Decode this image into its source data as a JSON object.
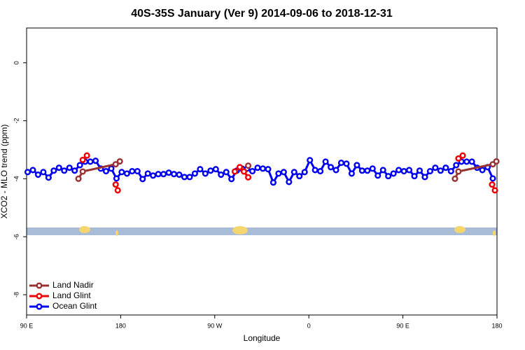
{
  "chart_data": {
    "type": "line",
    "title": "40S-35S January (Ver 9)   2014-09-06 to 2018-12-31",
    "x_label": "Longitude",
    "y_label": "XCO2 - MLO trend (ppm)",
    "xlim": [
      90,
      540
    ],
    "xticks": [
      {
        "value": 90,
        "label": "90 E"
      },
      {
        "value": 180,
        "label": "180"
      },
      {
        "value": 270,
        "label": "90 W"
      },
      {
        "value": 360,
        "label": "0"
      },
      {
        "value": 450,
        "label": "90 E"
      },
      {
        "value": 540,
        "label": "180"
      }
    ],
    "ylim": [
      -8.7,
      1.2
    ],
    "yticks": [
      0,
      -2,
      -4,
      -6,
      -8
    ],
    "legend": "bottom-left",
    "series": [
      {
        "name": "Ocean Glint",
        "color": "#0000ee",
        "x": [
          91,
          96,
          101,
          106,
          111,
          116,
          121,
          126,
          131,
          136,
          141,
          146,
          151,
          156,
          161,
          166,
          171,
          176,
          181,
          186,
          191,
          196,
          201,
          206,
          211,
          216,
          221,
          226,
          231,
          236,
          241,
          246,
          251,
          256,
          261,
          266,
          271,
          276,
          281,
          286,
          291,
          296,
          301,
          306,
          311,
          316,
          321,
          326,
          331,
          336,
          341,
          346,
          351,
          356,
          361,
          366,
          371,
          376,
          381,
          386,
          391,
          396,
          401,
          406,
          411,
          416,
          421,
          426,
          431,
          436,
          441,
          446,
          451,
          456,
          461,
          466,
          471,
          476,
          481,
          486,
          491,
          496,
          501,
          506,
          511,
          516,
          521,
          526,
          531,
          536
        ],
        "values": [
          -3.77,
          -3.7,
          -3.86,
          -3.77,
          -3.96,
          -3.72,
          -3.62,
          -3.72,
          -3.62,
          -3.72,
          -3.53,
          -3.41,
          -3.41,
          -3.38,
          -3.65,
          -3.74,
          -3.65,
          -3.99,
          -3.77,
          -3.82,
          -3.74,
          -3.74,
          -4.01,
          -3.82,
          -3.89,
          -3.84,
          -3.84,
          -3.79,
          -3.84,
          -3.86,
          -3.94,
          -3.94,
          -3.82,
          -3.67,
          -3.82,
          -3.72,
          -3.67,
          -3.86,
          -3.77,
          -4.01,
          -3.72,
          -3.65,
          -3.65,
          -3.74,
          -3.62,
          -3.65,
          -3.67,
          -4.13,
          -3.82,
          -3.77,
          -4.11,
          -3.77,
          -3.91,
          -3.77,
          -3.36,
          -3.7,
          -3.74,
          -3.41,
          -3.6,
          -3.7,
          -3.45,
          -3.48,
          -3.82,
          -3.53,
          -3.72,
          -3.72,
          -3.65,
          -3.89,
          -3.7,
          -3.91,
          -3.82,
          -3.7,
          -3.74,
          -3.7,
          -3.91,
          -3.72,
          -3.94,
          -3.74,
          -3.62,
          -3.72,
          -3.62,
          -3.74,
          -3.53,
          -3.41,
          -3.41,
          -3.41,
          -3.62,
          -3.7,
          -3.6,
          -3.99
        ]
      },
      {
        "name": "Land Nadir",
        "color": "#993333",
        "x": [
          139.6,
          143.7,
          175.2,
          179.2,
          null,
          302,
          null,
          499.8,
          503.1,
          536,
          539.4
        ],
        "values": [
          -4.0,
          -3.75,
          -3.5,
          -3.4,
          null,
          -3.55,
          null,
          -4.0,
          -3.75,
          -3.5,
          -3.4
        ]
      },
      {
        "name": "Land Glint",
        "color": "#ee0000",
        "x": [
          143.7,
          147.7,
          null,
          175.2,
          177.2,
          null,
          289.2,
          293.9,
          297.9,
          302,
          null,
          503.1,
          507.2,
          null,
          535.3,
          538
        ],
        "values": [
          -3.35,
          -3.2,
          null,
          -4.2,
          -4.4,
          null,
          -3.75,
          -3.6,
          -3.75,
          -3.95,
          null,
          -3.3,
          -3.2,
          null,
          -4.2,
          -4.4
        ]
      }
    ]
  }
}
